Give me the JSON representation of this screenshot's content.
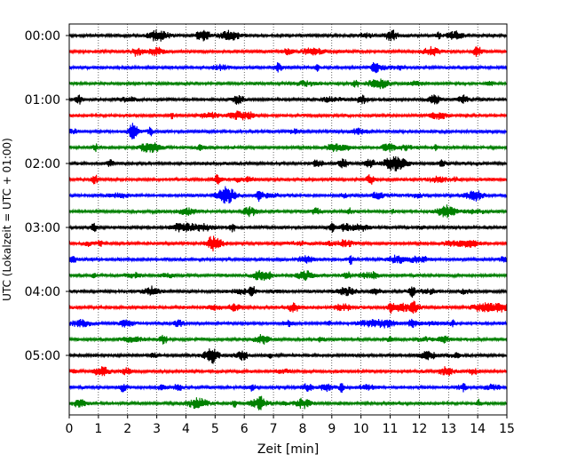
{
  "chart_data": {
    "type": "line",
    "title": "",
    "xlabel": "Zeit  [min]",
    "ylabel": "UTC (Lokalzeit = UTC + 01:00)",
    "xlim": [
      0,
      15
    ],
    "x_ticks": [
      0,
      1,
      2,
      3,
      4,
      5,
      6,
      7,
      8,
      9,
      10,
      11,
      12,
      13,
      14,
      15
    ],
    "y_tick_labels": [
      "00:00",
      "01:00",
      "02:00",
      "03:00",
      "04:00",
      "05:00"
    ],
    "traces_per_hour": 4,
    "trace_interval_min": 15,
    "trace_count": 24,
    "trace_colors": [
      "#000000",
      "#ff0000",
      "#0000ff",
      "#008000"
    ],
    "vertical_grid": true,
    "grid_style": "dotted",
    "series": [
      {
        "start": "00:00",
        "color": "#000000"
      },
      {
        "start": "00:15",
        "color": "#ff0000"
      },
      {
        "start": "00:30",
        "color": "#0000ff"
      },
      {
        "start": "00:45",
        "color": "#008000"
      },
      {
        "start": "01:00",
        "color": "#000000"
      },
      {
        "start": "01:15",
        "color": "#ff0000"
      },
      {
        "start": "01:30",
        "color": "#0000ff"
      },
      {
        "start": "01:45",
        "color": "#008000"
      },
      {
        "start": "02:00",
        "color": "#000000"
      },
      {
        "start": "02:15",
        "color": "#ff0000"
      },
      {
        "start": "02:30",
        "color": "#0000ff"
      },
      {
        "start": "02:45",
        "color": "#008000"
      },
      {
        "start": "03:00",
        "color": "#000000"
      },
      {
        "start": "03:15",
        "color": "#ff0000"
      },
      {
        "start": "03:30",
        "color": "#0000ff"
      },
      {
        "start": "03:45",
        "color": "#008000"
      },
      {
        "start": "04:00",
        "color": "#000000"
      },
      {
        "start": "04:15",
        "color": "#ff0000"
      },
      {
        "start": "04:30",
        "color": "#0000ff"
      },
      {
        "start": "04:45",
        "color": "#008000"
      },
      {
        "start": "05:00",
        "color": "#000000"
      },
      {
        "start": "05:15",
        "color": "#ff0000"
      },
      {
        "start": "05:30",
        "color": "#0000ff"
      },
      {
        "start": "05:45",
        "color": "#008000"
      }
    ]
  }
}
